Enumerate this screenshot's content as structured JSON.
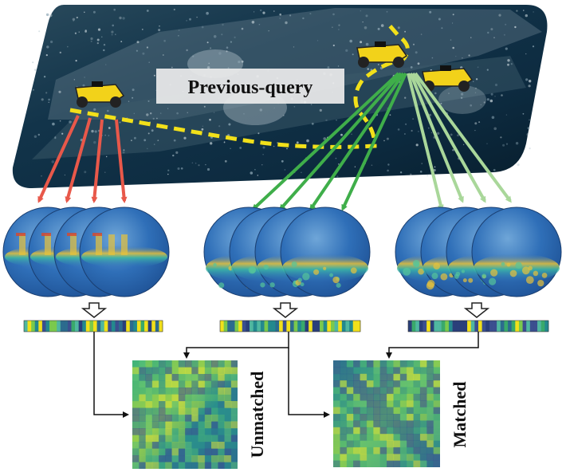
{
  "scene": {
    "query_label": "Previous-query",
    "colors": {
      "path": "#f2e01a",
      "red_arrows": "#e8584a",
      "green_arrows": "#3fae4a",
      "light_green_arrows": "#a9d79a",
      "sky": "#0a2a3f"
    }
  },
  "matrices": {
    "left_label": "Unmatched",
    "right_label": "Matched"
  }
}
